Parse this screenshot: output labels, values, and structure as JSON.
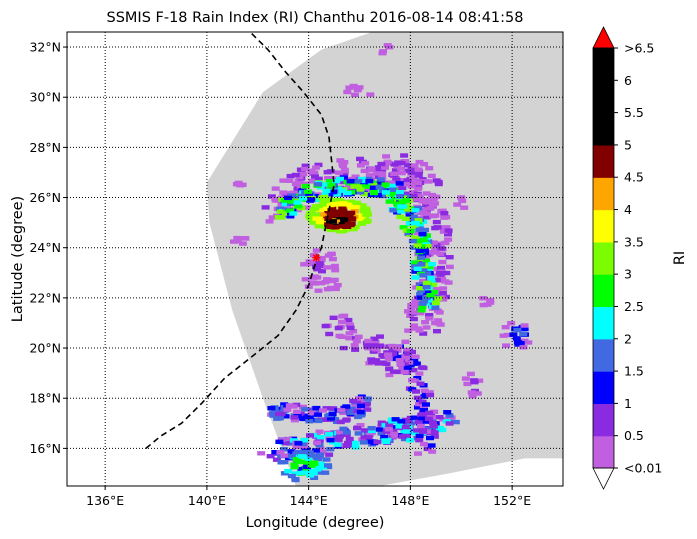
{
  "title": "SSMIS F-18 Rain Index (RI) Chanthu 2016-08-14 08:41:58",
  "xlabel": "Longitude (degree)",
  "ylabel": "Latitude (degree)",
  "x_ticks": [
    "136°E",
    "140°E",
    "144°E",
    "148°E",
    "152°E"
  ],
  "y_ticks": [
    "16°N",
    "18°N",
    "20°N",
    "22°N",
    "24°N",
    "26°N",
    "28°N",
    "30°N",
    "32°N"
  ],
  "colorbar": {
    "label": "RI",
    "tick_labels": [
      "<0.01",
      "0.5",
      "1",
      "1.5",
      "2",
      "2.5",
      "3",
      "3.5",
      "4",
      "4.5",
      "5",
      "5.5",
      "6",
      ">6.5"
    ],
    "colors": [
      "#c060e0",
      "#8a2be2",
      "#0000ff",
      "#4169e1",
      "#00ffff",
      "#00ff00",
      "#7cfc00",
      "#ffff00",
      "#ffa500",
      "#800000",
      "#000000",
      "#000000",
      "#000000"
    ],
    "over_color": "#ff0000",
    "under_color": "#ffffff"
  },
  "map": {
    "lon_range": [
      134.5,
      154
    ],
    "lat_range": [
      14.5,
      32.6
    ],
    "swath_color": "#d3d3d3",
    "track_lon": [
      137.6,
      138.2,
      139.0,
      139.8,
      140.7,
      141.7,
      142.8,
      143.5,
      144.0,
      144.3,
      144.5,
      144.6,
      144.8,
      145.0,
      144.9,
      144.8,
      144.5,
      143.8,
      143.1,
      142.4,
      141.7
    ],
    "track_lat": [
      16.0,
      16.5,
      17.0,
      17.8,
      18.8,
      19.6,
      20.5,
      21.5,
      22.5,
      23.5,
      24.0,
      24.5,
      25.5,
      26.5,
      27.5,
      28.4,
      29.3,
      30.2,
      31.0,
      31.9,
      32.6
    ],
    "storm_center": [
      144.3,
      23.6
    ]
  }
}
